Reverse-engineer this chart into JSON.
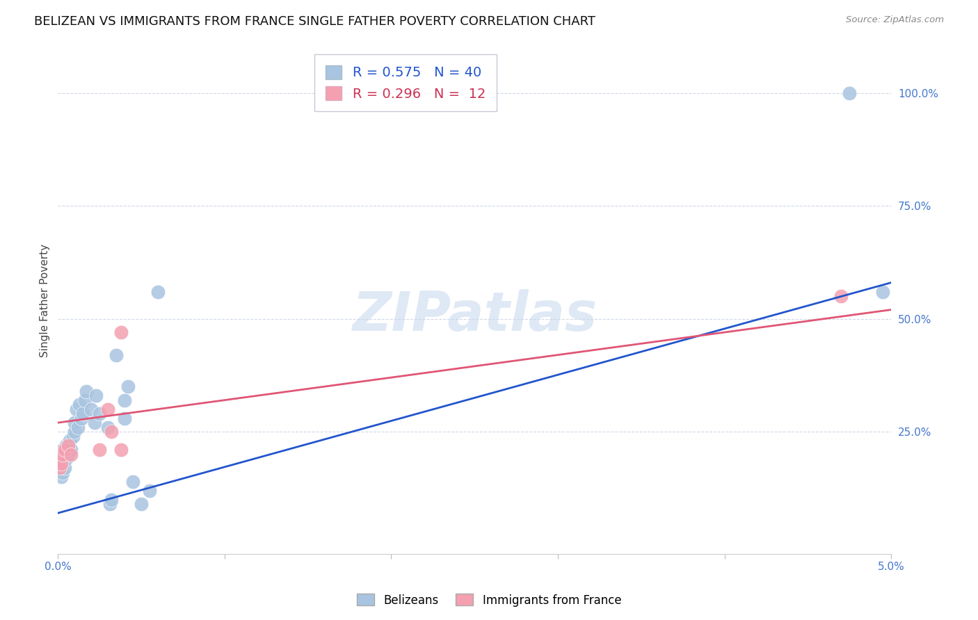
{
  "title": "BELIZEAN VS IMMIGRANTS FROM FRANCE SINGLE FATHER POVERTY CORRELATION CHART",
  "source": "Source: ZipAtlas.com",
  "ylabel": "Single Father Poverty",
  "ytick_labels": [
    "100.0%",
    "75.0%",
    "50.0%",
    "25.0%"
  ],
  "ytick_values": [
    1.0,
    0.75,
    0.5,
    0.25
  ],
  "xlim": [
    0.0,
    0.05
  ],
  "ylim": [
    -0.02,
    1.1
  ],
  "belizean_R": 0.575,
  "belizean_N": 40,
  "france_R": 0.296,
  "france_N": 12,
  "belizean_color": "#a8c4e0",
  "france_color": "#f4a0b0",
  "belizean_line_color": "#2255cc",
  "france_line_color": "#e05575",
  "belizean_x": [
    0.0001,
    0.0001,
    0.0002,
    0.0002,
    0.0002,
    0.0003,
    0.0003,
    0.0004,
    0.0005,
    0.0005,
    0.0006,
    0.0007,
    0.0008,
    0.0009,
    0.001,
    0.001,
    0.0011,
    0.0012,
    0.0013,
    0.0014,
    0.0015,
    0.0016,
    0.0017,
    0.002,
    0.0022,
    0.0023,
    0.0025,
    0.003,
    0.0031,
    0.0032,
    0.0035,
    0.004,
    0.004,
    0.0042,
    0.0045,
    0.005,
    0.0055,
    0.006,
    0.0475,
    0.0495
  ],
  "belizean_y": [
    0.17,
    0.19,
    0.15,
    0.18,
    0.2,
    0.16,
    0.21,
    0.17,
    0.19,
    0.22,
    0.2,
    0.23,
    0.21,
    0.24,
    0.25,
    0.27,
    0.3,
    0.26,
    0.31,
    0.28,
    0.29,
    0.32,
    0.34,
    0.3,
    0.27,
    0.33,
    0.29,
    0.26,
    0.09,
    0.1,
    0.42,
    0.28,
    0.32,
    0.35,
    0.14,
    0.09,
    0.12,
    0.56,
    1.0,
    0.56
  ],
  "france_x": [
    0.0001,
    0.0002,
    0.0003,
    0.0004,
    0.0006,
    0.0008,
    0.0025,
    0.003,
    0.0032,
    0.0038,
    0.0038,
    0.047
  ],
  "france_y": [
    0.17,
    0.18,
    0.2,
    0.21,
    0.22,
    0.2,
    0.21,
    0.3,
    0.25,
    0.47,
    0.21,
    0.55
  ],
  "belizean_trend": [
    0.0,
    0.05,
    0.07,
    0.58
  ],
  "france_trend": [
    0.0,
    0.05,
    0.27,
    0.52
  ],
  "watermark": "ZIPatlas",
  "background_color": "#ffffff",
  "grid_color": "#d0d8e8",
  "tick_color": "#4477cc",
  "title_fontsize": 13,
  "axis_label_fontsize": 11,
  "tick_fontsize": 11,
  "legend_text_color_1": "#2255cc",
  "legend_text_color_2": "#cc3355"
}
